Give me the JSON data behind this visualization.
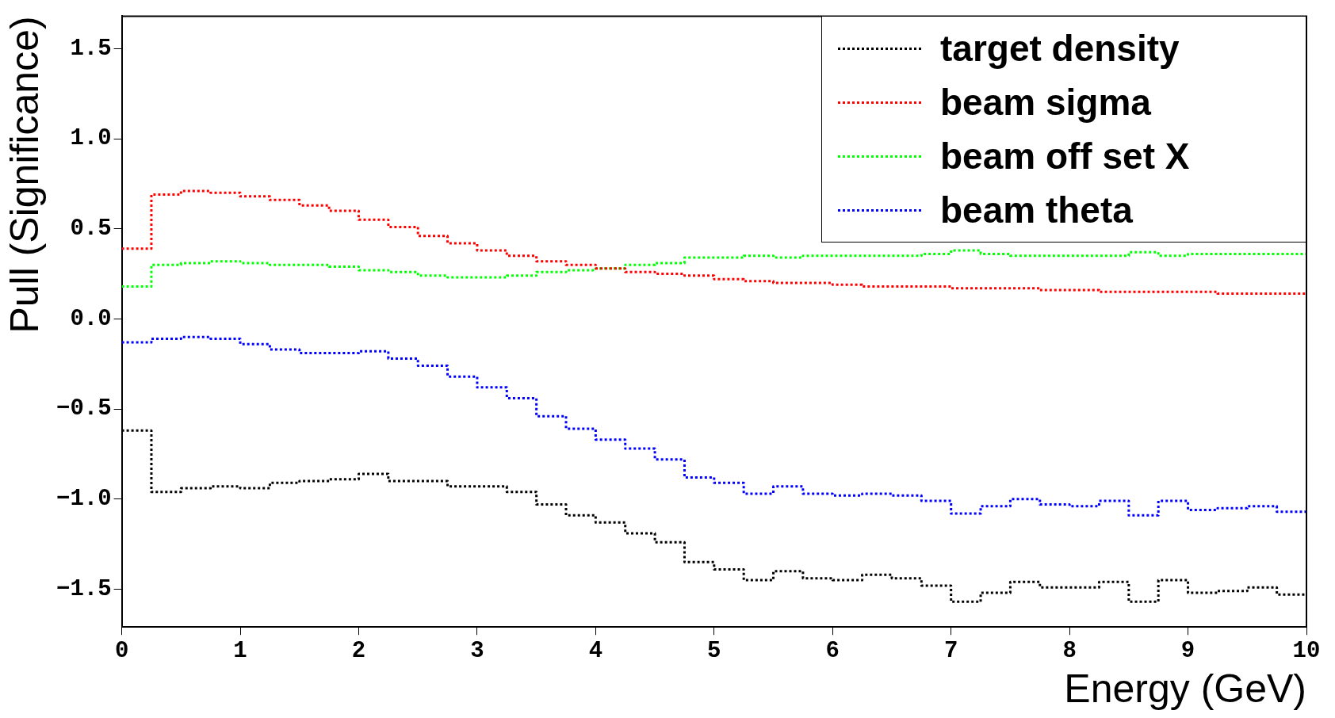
{
  "chart_data": {
    "type": "histogram",
    "xlabel": "Energy (GeV)",
    "ylabel": "Pull (Significance)",
    "bins": [
      0,
      0.25,
      0.5,
      0.75,
      1,
      1.25,
      1.5,
      1.75,
      2,
      2.25,
      2.5,
      2.75,
      3,
      3.25,
      3.5,
      3.75,
      4,
      4.25,
      4.5,
      4.75,
      5,
      5.25,
      5.5,
      5.75,
      6,
      6.25,
      6.5,
      6.75,
      7,
      7.25,
      7.5,
      7.75,
      8,
      8.25,
      8.5,
      8.75,
      9,
      9.25,
      9.5,
      9.75,
      10
    ],
    "series": [
      {
        "name": "target density",
        "color": "#000000",
        "values": [
          -0.62,
          -0.96,
          -0.94,
          -0.93,
          -0.94,
          -0.91,
          -0.9,
          -0.89,
          -0.86,
          -0.9,
          -0.9,
          -0.93,
          -0.93,
          -0.96,
          -1.03,
          -1.09,
          -1.13,
          -1.19,
          -1.24,
          -1.35,
          -1.39,
          -1.45,
          -1.4,
          -1.44,
          -1.45,
          -1.42,
          -1.44,
          -1.48,
          -1.57,
          -1.52,
          -1.46,
          -1.49,
          -1.49,
          -1.46,
          -1.57,
          -1.45,
          -1.52,
          -1.51,
          -1.49,
          -1.53
        ]
      },
      {
        "name": "beam sigma",
        "color": "#ff0000",
        "values": [
          0.39,
          0.69,
          0.71,
          0.7,
          0.68,
          0.66,
          0.63,
          0.6,
          0.55,
          0.51,
          0.46,
          0.42,
          0.38,
          0.35,
          0.32,
          0.3,
          0.28,
          0.26,
          0.25,
          0.24,
          0.22,
          0.21,
          0.2,
          0.2,
          0.19,
          0.18,
          0.18,
          0.18,
          0.17,
          0.17,
          0.17,
          0.16,
          0.16,
          0.15,
          0.15,
          0.15,
          0.15,
          0.14,
          0.14,
          0.14
        ]
      },
      {
        "name": "beam off set X",
        "color": "#00ff00",
        "values": [
          0.18,
          0.3,
          0.31,
          0.32,
          0.31,
          0.3,
          0.3,
          0.29,
          0.27,
          0.26,
          0.24,
          0.23,
          0.23,
          0.24,
          0.26,
          0.27,
          0.28,
          0.3,
          0.31,
          0.34,
          0.34,
          0.35,
          0.34,
          0.35,
          0.35,
          0.35,
          0.35,
          0.36,
          0.38,
          0.36,
          0.35,
          0.35,
          0.35,
          0.35,
          0.37,
          0.35,
          0.36,
          0.36,
          0.36,
          0.36
        ]
      },
      {
        "name": "beam theta",
        "color": "#0000ff",
        "values": [
          -0.13,
          -0.11,
          -0.1,
          -0.11,
          -0.14,
          -0.17,
          -0.19,
          -0.19,
          -0.18,
          -0.22,
          -0.26,
          -0.32,
          -0.38,
          -0.44,
          -0.54,
          -0.61,
          -0.67,
          -0.72,
          -0.78,
          -0.88,
          -0.91,
          -0.97,
          -0.93,
          -0.97,
          -0.98,
          -0.97,
          -0.98,
          -1.01,
          -1.08,
          -1.04,
          -1.0,
          -1.03,
          -1.04,
          -1.01,
          -1.09,
          -1.01,
          -1.06,
          -1.05,
          -1.04,
          -1.07
        ]
      }
    ],
    "xlim": [
      0,
      10
    ],
    "xticks": [
      0,
      1,
      2,
      3,
      4,
      5,
      6,
      7,
      8,
      9,
      10
    ],
    "ylim": [
      -1.71,
      1.68
    ],
    "yticks": [
      {
        "value": -1.5,
        "label": "−1.5"
      },
      {
        "value": -1,
        "label": "−1.0"
      },
      {
        "value": -0.5,
        "label": "−0.5"
      },
      {
        "value": 0,
        "label": "0.0"
      },
      {
        "value": 0.5,
        "label": "0.5"
      },
      {
        "value": 1,
        "label": "1.0"
      },
      {
        "value": 1.5,
        "label": "1.5"
      }
    ],
    "grid": false,
    "legend": "top right",
    "line_style": "dotted",
    "marker": "none"
  }
}
